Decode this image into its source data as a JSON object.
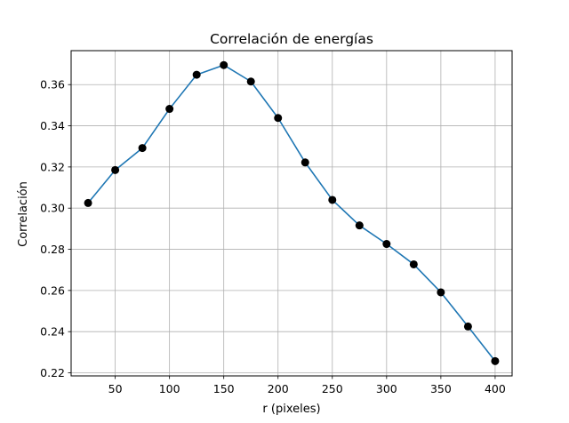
{
  "chart_data": {
    "type": "line",
    "title": "Correlación de energías",
    "xlabel": "r (pixeles)",
    "ylabel": "Correlación",
    "x": [
      25,
      50,
      75,
      100,
      125,
      150,
      175,
      200,
      225,
      250,
      275,
      300,
      325,
      350,
      375,
      400
    ],
    "series": [
      {
        "values": [
          0.3025,
          0.3185,
          0.3292,
          0.3482,
          0.3648,
          0.3695,
          0.3615,
          0.3438,
          0.3222,
          0.304,
          0.2916,
          0.2826,
          0.2727,
          0.2591,
          0.2425,
          0.2257
        ],
        "color": "#1f77b4",
        "marker_color": "#000000",
        "marker": "circle"
      }
    ],
    "xlim": [
      9.375,
      415.625
    ],
    "ylim": [
      0.2185,
      0.3765
    ],
    "xticks": [
      50,
      100,
      150,
      200,
      250,
      300,
      350,
      400
    ],
    "xtick_labels": [
      "50",
      "100",
      "150",
      "200",
      "250",
      "300",
      "350",
      "400"
    ],
    "yticks": [
      0.22,
      0.24,
      0.26,
      0.28,
      0.3,
      0.32,
      0.34,
      0.36
    ],
    "ytick_labels": [
      "0.22",
      "0.24",
      "0.26",
      "0.28",
      "0.30",
      "0.32",
      "0.34",
      "0.36"
    ],
    "grid": true,
    "grid_color": "#b0b0b0",
    "legend": false
  }
}
